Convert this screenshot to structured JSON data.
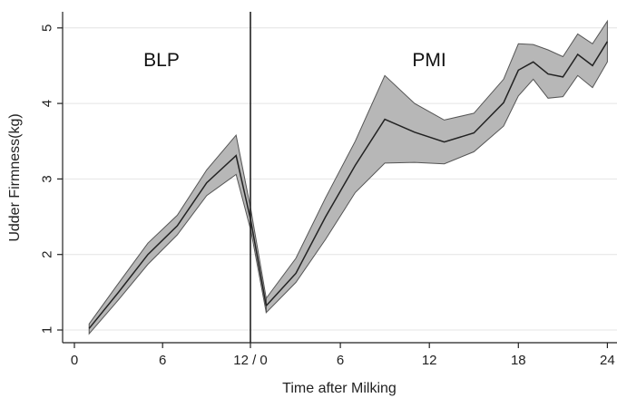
{
  "chart_data": {
    "type": "area",
    "xlabel": "Time after Milking",
    "ylabel": "Udder Firmness(kg)",
    "ylim": [
      0.8,
      5.2
    ],
    "grid": true,
    "annotations": [
      "BLP",
      "PMI"
    ],
    "x_ticks": [
      "0",
      "6",
      "12 / 0",
      "6",
      "12",
      "18",
      "24"
    ],
    "y_ticks": [
      "1",
      "2",
      "3",
      "4",
      "5"
    ],
    "divider_label": "12 / 0",
    "panels": [
      {
        "name": "BLP",
        "x": [
          1,
          3,
          5,
          7,
          9,
          11,
          12
        ],
        "mean": [
          1.02,
          1.5,
          2.0,
          2.38,
          2.95,
          3.31,
          2.45
        ],
        "upper": [
          1.08,
          1.62,
          2.15,
          2.52,
          3.12,
          3.58,
          2.6
        ],
        "lower": [
          0.95,
          1.4,
          1.87,
          2.26,
          2.78,
          3.06,
          2.32
        ]
      },
      {
        "name": "PMI",
        "x": [
          1,
          3,
          5,
          7,
          9,
          11,
          13,
          15,
          17,
          18,
          19,
          20,
          21,
          22,
          23,
          24
        ],
        "mean": [
          1.32,
          1.75,
          2.5,
          3.18,
          3.79,
          3.62,
          3.49,
          3.61,
          4.01,
          4.44,
          4.55,
          4.39,
          4.35,
          4.65,
          4.5,
          4.82
        ],
        "upper": [
          1.42,
          1.95,
          2.75,
          3.5,
          4.37,
          4.0,
          3.78,
          3.87,
          4.32,
          4.79,
          4.78,
          4.71,
          4.62,
          4.92,
          4.79,
          5.09
        ],
        "lower": [
          1.23,
          1.63,
          2.2,
          2.82,
          3.21,
          3.22,
          3.2,
          3.36,
          3.7,
          4.1,
          4.32,
          4.07,
          4.09,
          4.37,
          4.21,
          4.55
        ]
      }
    ],
    "colors": {
      "band": "#b7b7b7",
      "band_edge": "#555555",
      "line": "#222222",
      "grid": "#e4e4e4"
    }
  }
}
